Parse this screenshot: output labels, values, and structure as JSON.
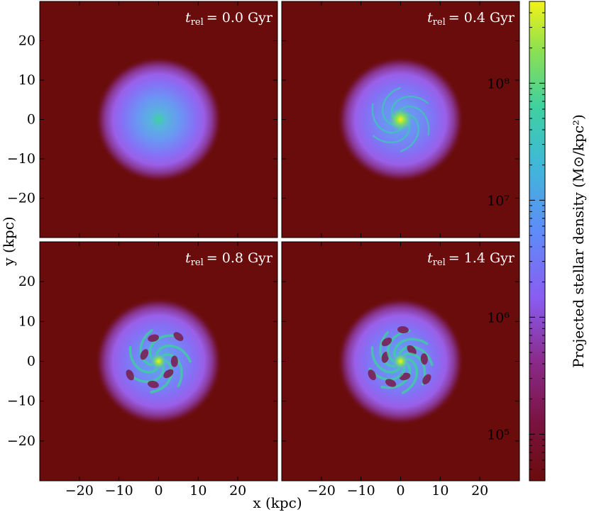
{
  "chart_data": {
    "type": "heatmap",
    "xlabel": "x (kpc)",
    "ylabel": "y (kpc)",
    "xlim": [
      -30,
      30
    ],
    "ylim": [
      -30,
      30
    ],
    "x_ticks": [
      -20,
      -10,
      0,
      10,
      20
    ],
    "y_ticks": [
      20,
      10,
      0,
      -10,
      -20
    ],
    "x_tick_labels": [
      "−20",
      "−10",
      "0",
      "10",
      "20"
    ],
    "y_tick_labels": [
      "20",
      "10",
      "0",
      "−10",
      "−20"
    ],
    "panels": [
      {
        "t_rel_gyr": 0.0,
        "label_time": "= 0.0 Gyr",
        "label_t": "t",
        "label_sub": "rel",
        "structure": "smooth"
      },
      {
        "t_rel_gyr": 0.4,
        "label_time": "= 0.4 Gyr",
        "label_t": "t",
        "label_sub": "rel",
        "structure": "spiral"
      },
      {
        "t_rel_gyr": 0.8,
        "label_time": "= 0.8 Gyr",
        "label_t": "t",
        "label_sub": "rel",
        "structure": "clumpy"
      },
      {
        "t_rel_gyr": 1.4,
        "label_time": "= 1.4 Gyr",
        "label_t": "t",
        "label_sub": "rel",
        "structure": "clumpy"
      }
    ],
    "colorbar": {
      "label": "Projected stellar density (M⊙/kpc²)",
      "scale": "log",
      "range": [
        40000,
        500000000
      ],
      "ticks": [
        100000,
        1000000,
        10000000,
        100000000
      ],
      "tick_labels": [
        "10⁵",
        "10⁶",
        "10⁷",
        "10⁸"
      ],
      "colormap": [
        "#6b0c0c",
        "#7a1240",
        "#8a2a8a",
        "#8a5cf0",
        "#5f8cf8",
        "#3fb8d8",
        "#3fd0a0",
        "#8ee050",
        "#f3f318"
      ]
    },
    "background_color": "#6b0c0c",
    "grid": false
  }
}
